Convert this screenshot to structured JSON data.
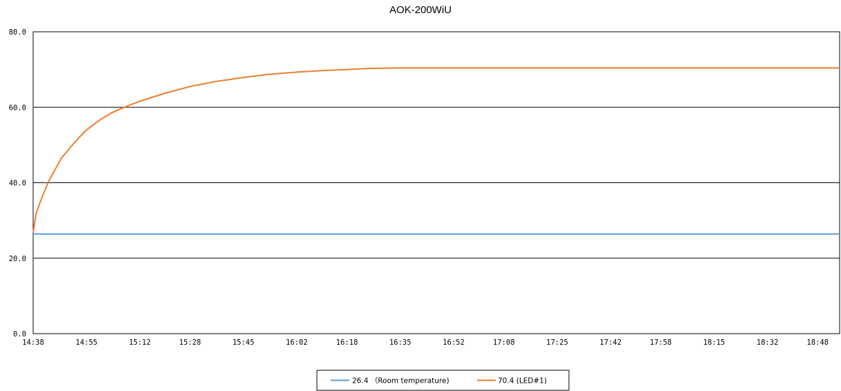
{
  "chart_data": {
    "type": "line",
    "title": "AOK-200WiU",
    "xlabel": "",
    "ylabel": "",
    "ylim": [
      0,
      80
    ],
    "y_ticks": [
      "0.0",
      "20.0",
      "40.0",
      "60.0",
      "80.0"
    ],
    "x_ticks": [
      "14:38",
      "14:55",
      "15:12",
      "15:28",
      "15:45",
      "16:02",
      "16:18",
      "16:35",
      "16:52",
      "17:08",
      "17:25",
      "17:42",
      "17:58",
      "18:15",
      "18:32",
      "18:48"
    ],
    "grid": "horizontal",
    "legend": "bottom",
    "series": [
      {
        "name": "26.4 （Room temperature)",
        "color": "#5B9BD5",
        "x": [
          "14:38",
          "14:55",
          "15:12",
          "15:28",
          "15:45",
          "16:02",
          "16:18",
          "16:35",
          "16:52",
          "17:08",
          "17:25",
          "17:42",
          "17:58",
          "18:15",
          "18:32",
          "18:48",
          "18:55"
        ],
        "values": [
          26.4,
          26.4,
          26.4,
          26.4,
          26.4,
          26.4,
          26.4,
          26.4,
          26.4,
          26.4,
          26.4,
          26.4,
          26.4,
          26.4,
          26.4,
          26.4,
          26.4
        ]
      },
      {
        "name": "70.4 (LED#1)",
        "color": "#ED7D31",
        "x": [
          "14:38",
          "14:39",
          "14:41",
          "14:43",
          "14:45",
          "14:47",
          "14:50",
          "14:53",
          "14:55",
          "14:59",
          "15:03",
          "15:07",
          "15:12",
          "15:20",
          "15:28",
          "15:36",
          "15:45",
          "15:53",
          "16:02",
          "16:10",
          "16:18",
          "16:25",
          "16:35",
          "16:52",
          "17:08",
          "17:25",
          "17:42",
          "17:58",
          "18:15",
          "18:32",
          "18:48",
          "18:55"
        ],
        "values": [
          26.8,
          32.0,
          36.5,
          40.5,
          43.5,
          46.5,
          49.5,
          52.3,
          54.0,
          56.5,
          58.5,
          60.0,
          61.6,
          63.7,
          65.5,
          66.8,
          67.9,
          68.7,
          69.3,
          69.7,
          70.0,
          70.3,
          70.4,
          70.4,
          70.4,
          70.4,
          70.4,
          70.4,
          70.4,
          70.4,
          70.4,
          70.4
        ]
      }
    ]
  }
}
